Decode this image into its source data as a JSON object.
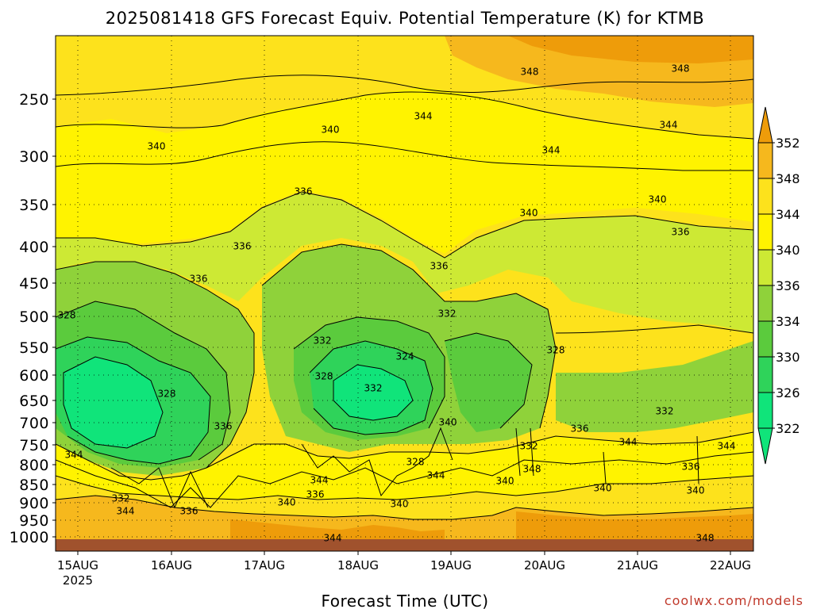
{
  "chart_data": {
    "type": "heatmap",
    "title": "2025081418 GFS Forecast Equiv. Potential Temperature (K) for KTMB",
    "xlabel": "Forecast Time (UTC)",
    "ylabel": "",
    "x_ticks": [
      "15AUG",
      "16AUG",
      "17AUG",
      "18AUG",
      "19AUG",
      "20AUG",
      "21AUG",
      "22AUG"
    ],
    "x_year": "2025",
    "y_ticks": [
      "250",
      "300",
      "350",
      "400",
      "450",
      "500",
      "550",
      "600",
      "650",
      "700",
      "750",
      "800",
      "850",
      "900",
      "950",
      "1000"
    ],
    "y_values": [
      250,
      300,
      350,
      400,
      450,
      500,
      550,
      600,
      650,
      700,
      750,
      800,
      850,
      900,
      950,
      1000
    ],
    "colorbar": {
      "ticks": [
        "352",
        "348",
        "344",
        "340",
        "336",
        "334",
        "330",
        "326",
        "322"
      ],
      "values": [
        352,
        348,
        344,
        340,
        336,
        334,
        330,
        326,
        322
      ],
      "colors": [
        "#ee9c0a",
        "#f6b81d",
        "#fde21c",
        "#fff300",
        "#cde934",
        "#8fd23a",
        "#5bcb3d",
        "#2fd35a",
        "#10e47a",
        "#10e47a"
      ]
    },
    "contour_labels": [
      "328",
      "340",
      "336",
      "336",
      "340",
      "336",
      "344",
      "348",
      "348",
      "344",
      "344",
      "340",
      "340",
      "336",
      "336",
      "332",
      "332",
      "328",
      "328",
      "324",
      "328",
      "332",
      "336",
      "336",
      "332",
      "340",
      "344",
      "332",
      "344",
      "340",
      "336",
      "340",
      "348",
      "344",
      "336",
      "340",
      "348",
      "344",
      "344",
      "340",
      "344",
      "332",
      "336",
      "328",
      "344",
      "340"
    ],
    "surface_color": "#a0522d",
    "grid": "dotted"
  },
  "credit": "coolwx.com/models"
}
